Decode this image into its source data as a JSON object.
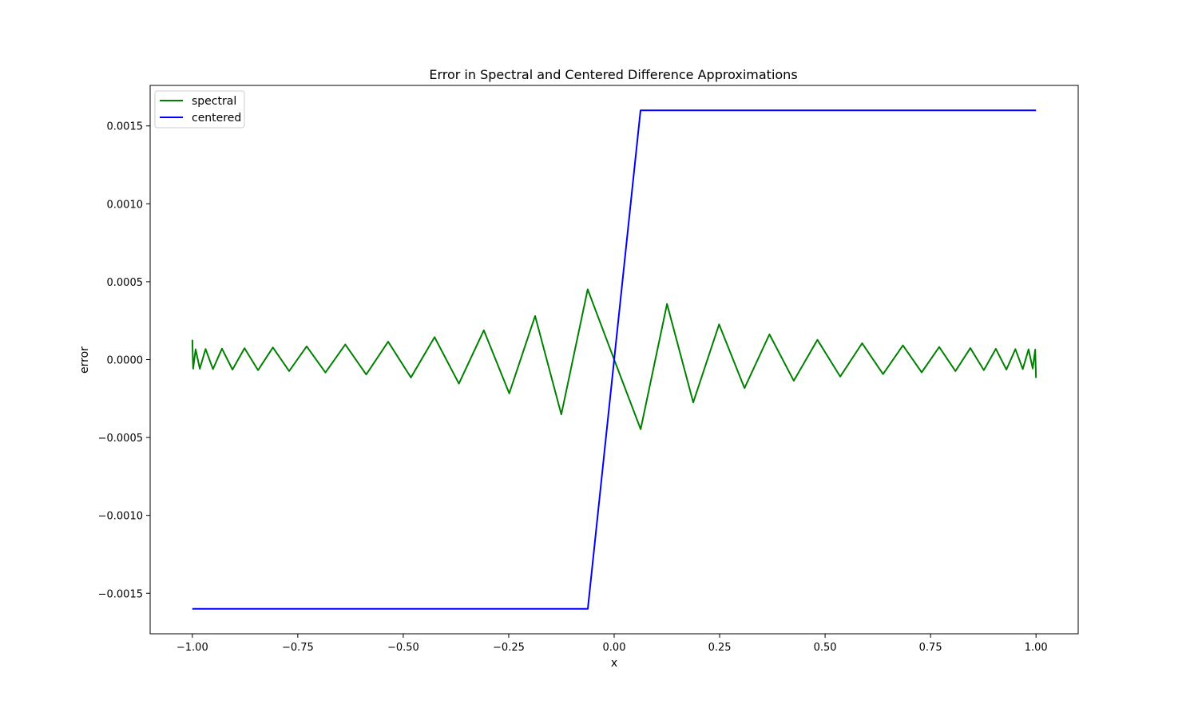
{
  "chart_data": {
    "type": "line",
    "title": "Error in Spectral and Centered Difference Approximations",
    "xlabel": "x",
    "ylabel": "error",
    "xlim": [
      -1.1,
      1.1
    ],
    "ylim": [
      -0.00176,
      0.00176
    ],
    "xticks": [
      -1.0,
      -0.75,
      -0.5,
      -0.25,
      0.0,
      0.25,
      0.5,
      0.75,
      1.0
    ],
    "xtick_labels": [
      "−1.00",
      "−0.75",
      "−0.50",
      "−0.25",
      "0.00",
      "0.25",
      "0.50",
      "0.75",
      "1.00"
    ],
    "yticks": [
      -0.0015,
      -0.001,
      -0.0005,
      0.0,
      0.0005,
      0.001,
      0.0015
    ],
    "ytick_labels": [
      "−0.0015",
      "−0.0010",
      "−0.0005",
      "0.0000",
      "0.0005",
      "0.0010",
      "0.0015"
    ],
    "grid": false,
    "legend_position": "upper-left",
    "series": [
      {
        "name": "spectral",
        "color": "#008000",
        "x": [
          -1.0,
          -0.9981,
          -0.9922,
          -0.9823,
          -0.9686,
          -0.9511,
          -0.9298,
          -0.9048,
          -0.8763,
          -0.8443,
          -0.809,
          -0.7705,
          -0.729,
          -0.6845,
          -0.6374,
          -0.5878,
          -0.5358,
          -0.4818,
          -0.4258,
          -0.3681,
          -0.309,
          -0.2487,
          -0.1874,
          -0.1253,
          -0.0628,
          0.0,
          0.0628,
          0.1253,
          0.1874,
          0.2487,
          0.309,
          0.3681,
          0.4258,
          0.4818,
          0.5358,
          0.5878,
          0.6374,
          0.6845,
          0.729,
          0.7705,
          0.809,
          0.8443,
          0.8763,
          0.9048,
          0.9298,
          0.9511,
          0.9686,
          0.9823,
          0.9922,
          0.9981,
          1.0
        ],
        "y": [
          0.000127,
          -5.8e-05,
          6.6e-05,
          -5.9e-05,
          6.8e-05,
          -6.1e-05,
          7e-05,
          -6.4e-05,
          7.3e-05,
          -6.8e-05,
          7.8e-05,
          -7.4e-05,
          8.5e-05,
          -8.3e-05,
          9.7e-05,
          -9.6e-05,
          0.000115,
          -0.000115,
          0.000144,
          -0.000154,
          0.000188,
          -0.000217,
          0.00028,
          -0.000352,
          0.000451,
          0.0,
          -0.000447,
          0.000357,
          -0.000275,
          0.000226,
          -0.000183,
          0.000162,
          -0.000136,
          0.000127,
          -0.000109,
          0.000105,
          -9.3e-05,
          9.1e-05,
          -8.2e-05,
          8.1e-05,
          -7.4e-05,
          7.4e-05,
          -6.8e-05,
          6.9e-05,
          -6.4e-05,
          6.7e-05,
          -6.1e-05,
          6.6e-05,
          -5.7e-05,
          6.4e-05,
          -0.000118
        ]
      },
      {
        "name": "centered",
        "color": "#0000ff",
        "x": [
          -1.0,
          -0.0625,
          0.0625,
          1.0
        ],
        "y": [
          -0.0016,
          -0.0016,
          0.0016,
          0.0016
        ]
      }
    ]
  }
}
